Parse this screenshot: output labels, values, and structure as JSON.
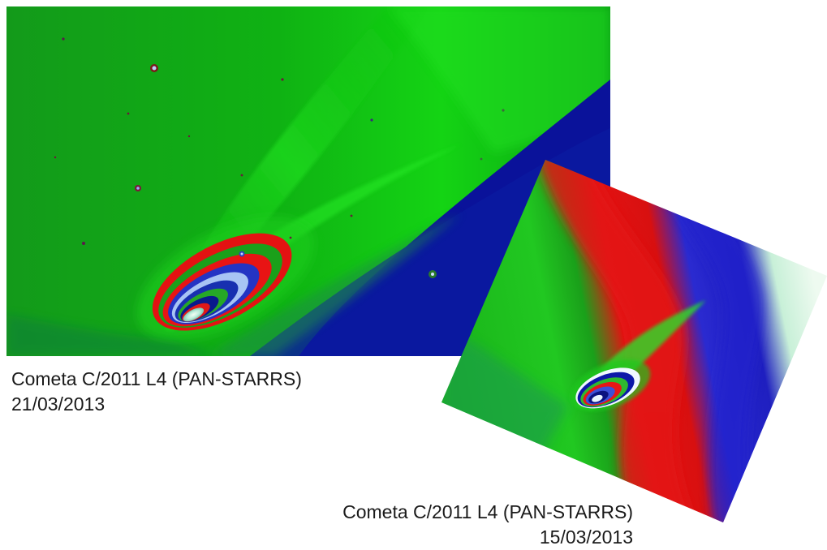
{
  "images": [
    {
      "caption_title": "Cometa C/2011 L4 (PAN-STARRS)",
      "caption_date": "21/03/2013",
      "palette": {
        "green": "#00c400",
        "blue": "#0a149a",
        "red": "#e81010",
        "white": "#e6f4f0"
      }
    },
    {
      "caption_title": "Cometa C/2011 L4 (PAN-STARRS)",
      "caption_date": "15/03/2013",
      "palette": {
        "green": "#1cc21c",
        "red": "#e01414",
        "blue": "#2020c8",
        "white": "#e8f8ee"
      }
    }
  ]
}
